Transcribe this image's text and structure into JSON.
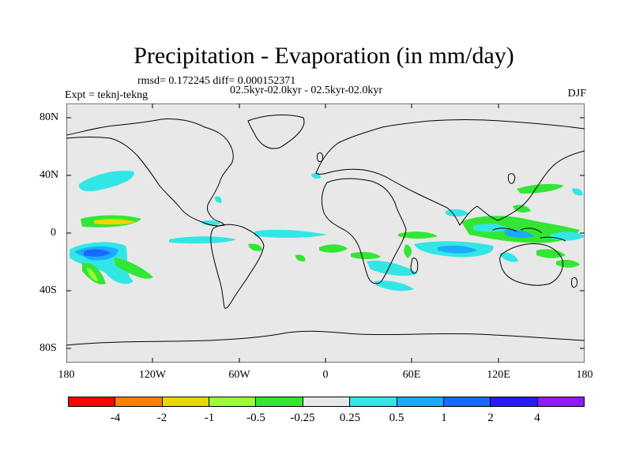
{
  "title": "Precipitation - Evaporation (in mm/day)",
  "stats": "rmsd= 0.172245 diff= 0.000152371",
  "comparison": "02.5kyr-02.0kyr - 02.5kyr-02.0kyr",
  "experiment": "Expt = teknj-tekng",
  "season": "DJF",
  "map": {
    "background": "#e8e8e8",
    "lat_labels": [
      "80N",
      "40N",
      "0",
      "40S",
      "80S"
    ],
    "lon_labels": [
      "180",
      "120W",
      "60W",
      "0",
      "60E",
      "120E",
      "180"
    ]
  },
  "colorbar": {
    "colors": [
      "#ff0000",
      "#ff8000",
      "#e8d800",
      "#99ff33",
      "#33e633",
      "#e8e8e8",
      "#33e6e6",
      "#1aaaff",
      "#1a66ff",
      "#2b1aff",
      "#8f1aff"
    ],
    "labels": [
      "-4",
      "-2",
      "-1",
      "-0.5",
      "-0.25",
      "0.25",
      "0.5",
      "1",
      "2",
      "4"
    ]
  }
}
